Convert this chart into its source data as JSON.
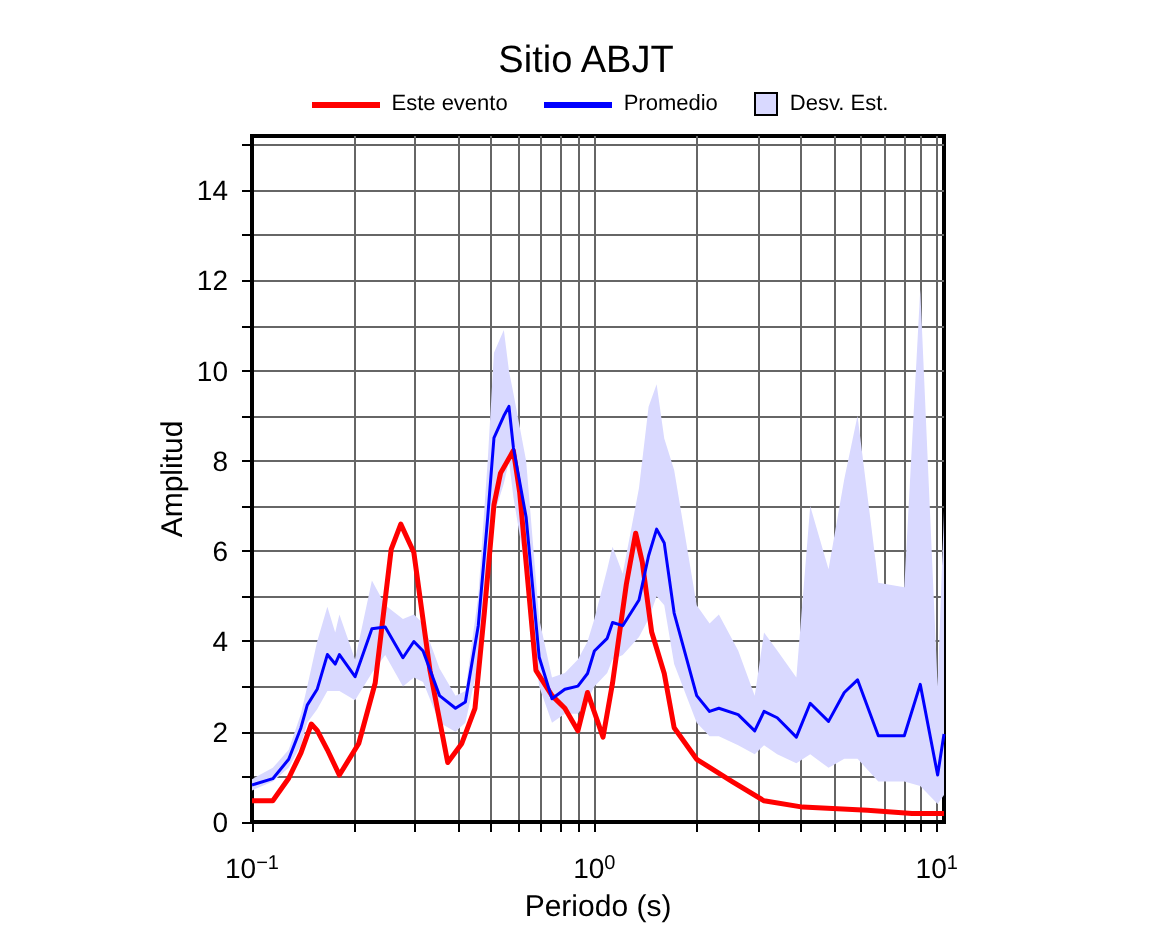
{
  "chart_data": {
    "type": "line",
    "title": "Sitio ABJT",
    "xlabel": "Periodo (s)",
    "ylabel": "Amplitud",
    "log": "x",
    "grid": true,
    "legend": "top",
    "line_style": "solid",
    "marker": "none",
    "annotations": [
      "Desv. Est."
    ],
    "xlim": [
      0.1,
      10.5
    ],
    "ylim": [
      0,
      15.2
    ],
    "xticks": [
      {
        "value": 0.1,
        "label": "10$^{−1}$"
      },
      {
        "value": 0.2,
        "label": null
      },
      {
        "value": 0.3,
        "label": null
      },
      {
        "value": 0.4,
        "label": null
      },
      {
        "value": 0.5,
        "label": null
      },
      {
        "value": 0.6,
        "label": null
      },
      {
        "value": 0.7,
        "label": null
      },
      {
        "value": 0.8,
        "label": null
      },
      {
        "value": 0.9,
        "label": null
      },
      {
        "value": 1,
        "label": "10$^{0}$"
      },
      {
        "value": 2,
        "label": null
      },
      {
        "value": 3,
        "label": null
      },
      {
        "value": 4,
        "label": null
      },
      {
        "value": 5,
        "label": null
      },
      {
        "value": 6,
        "label": null
      },
      {
        "value": 7,
        "label": null
      },
      {
        "value": 8,
        "label": null
      },
      {
        "value": 9,
        "label": null
      },
      {
        "value": 10,
        "label": "10$^{1}$"
      }
    ],
    "yticks": [
      0,
      {
        "value": 1,
        "label": null
      },
      2,
      {
        "value": 3,
        "label": null
      },
      4,
      {
        "value": 5,
        "label": null
      },
      6,
      {
        "value": 7,
        "label": null
      },
      8,
      {
        "value": 9,
        "label": null
      },
      10,
      {
        "value": 11,
        "label": null
      },
      12,
      {
        "value": 13,
        "label": null
      },
      14,
      {
        "value": 15,
        "label": null
      }
    ],
    "series": [
      {
        "name": "Este evento",
        "color": "#ff0000",
        "x": [
          0.1,
          0.115,
          0.128,
          0.139,
          0.149,
          0.155,
          0.166,
          0.18,
          0.205,
          0.229,
          0.255,
          0.272,
          0.297,
          0.331,
          0.373,
          0.41,
          0.448,
          0.477,
          0.509,
          0.532,
          0.58,
          0.605,
          0.675,
          0.752,
          0.82,
          0.895,
          0.955,
          1.06,
          1.13,
          1.24,
          1.32,
          1.38,
          1.47,
          1.6,
          1.71,
          1.99,
          2.52,
          3.13,
          4.06,
          6.27,
          8.47,
          10.5
        ],
        "values": [
          0.47,
          0.47,
          0.97,
          1.53,
          2.17,
          2.03,
          1.6,
          1.04,
          1.74,
          3.08,
          6.04,
          6.6,
          5.97,
          3.36,
          1.32,
          1.74,
          2.52,
          4.63,
          7.03,
          7.73,
          8.23,
          7.31,
          3.36,
          2.8,
          2.52,
          2.02,
          2.87,
          1.88,
          3.08,
          5.27,
          6.4,
          5.76,
          4.21,
          3.29,
          2.09,
          1.39,
          0.9,
          0.47,
          0.33,
          0.26,
          0.19,
          0.19
        ]
      },
      {
        "name": "Promedio",
        "color": "#0000ff",
        "x": [
          0.1,
          0.115,
          0.128,
          0.139,
          0.145,
          0.155,
          0.166,
          0.175,
          0.18,
          0.2,
          0.224,
          0.245,
          0.276,
          0.297,
          0.316,
          0.353,
          0.393,
          0.42,
          0.458,
          0.488,
          0.509,
          0.544,
          0.563,
          0.58,
          0.632,
          0.69,
          0.752,
          0.82,
          0.895,
          0.955,
          1.0,
          1.09,
          1.13,
          1.21,
          1.35,
          1.44,
          1.52,
          1.6,
          1.71,
          1.99,
          2.17,
          2.31,
          2.63,
          2.94,
          3.13,
          3.42,
          3.89,
          4.27,
          4.83,
          5.37,
          5.87,
          6.75,
          8.04,
          8.95,
          10.06,
          10.5
        ],
        "values": [
          0.82,
          0.96,
          1.39,
          2.09,
          2.59,
          2.94,
          3.71,
          3.5,
          3.71,
          3.22,
          4.28,
          4.32,
          3.64,
          4.0,
          3.79,
          2.8,
          2.52,
          2.66,
          4.35,
          6.75,
          8.51,
          9.0,
          9.21,
          8.3,
          6.75,
          3.65,
          2.73,
          2.94,
          3.01,
          3.29,
          3.79,
          4.07,
          4.42,
          4.35,
          4.92,
          5.9,
          6.49,
          6.18,
          4.63,
          2.8,
          2.45,
          2.52,
          2.38,
          2.02,
          2.45,
          2.31,
          1.88,
          2.63,
          2.23,
          2.87,
          3.15,
          1.91,
          1.91,
          3.05,
          1.04,
          1.95
        ],
        "lower": [
          0.7,
          0.9,
          1.2,
          1.7,
          2.2,
          2.5,
          2.9,
          2.9,
          2.9,
          2.7,
          3.3,
          3.7,
          3.0,
          3.2,
          3.1,
          2.2,
          2.0,
          2.2,
          3.5,
          5.5,
          6.8,
          7.5,
          8.0,
          7.2,
          5.5,
          3.0,
          2.2,
          2.4,
          2.4,
          2.7,
          3.0,
          3.3,
          3.6,
          3.7,
          4.1,
          4.5,
          5.0,
          4.8,
          3.5,
          2.2,
          1.9,
          1.9,
          1.7,
          1.5,
          1.7,
          1.5,
          1.3,
          1.5,
          1.2,
          1.4,
          1.4,
          0.9,
          0.9,
          0.8,
          0.4,
          0.6
        ],
        "upper": [
          0.95,
          1.2,
          1.6,
          2.4,
          3.0,
          4.0,
          4.77,
          4.2,
          4.6,
          3.6,
          5.35,
          4.8,
          4.5,
          4.6,
          4.4,
          3.4,
          2.8,
          2.9,
          5.0,
          8.0,
          10.4,
          10.9,
          10.0,
          9.5,
          8.0,
          4.5,
          3.2,
          3.3,
          3.6,
          4.0,
          4.5,
          5.6,
          6.1,
          5.5,
          7.4,
          9.2,
          9.7,
          8.5,
          7.8,
          4.8,
          4.4,
          4.6,
          3.8,
          2.8,
          4.2,
          3.8,
          3.2,
          7.0,
          5.6,
          7.6,
          9.0,
          5.3,
          5.2,
          11.8,
          3.0,
          6.9
        ]
      }
    ]
  }
}
